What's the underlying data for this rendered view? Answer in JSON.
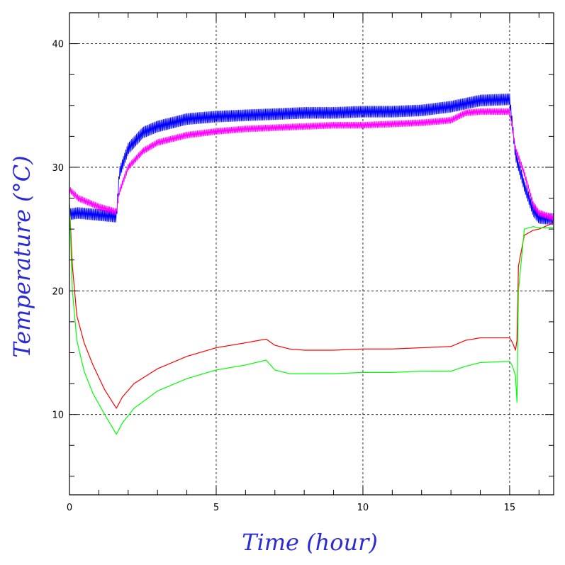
{
  "chart_data": {
    "type": "line",
    "title": "",
    "xlabel": "Time (hour)",
    "ylabel": "Temperature (°C)",
    "xlim": [
      0,
      16.5
    ],
    "ylim": [
      3.5,
      42.5
    ],
    "xticks": [
      0,
      5,
      10,
      15
    ],
    "yticks": [
      10,
      20,
      30,
      40
    ],
    "grid": true,
    "legend": "none",
    "colors": {
      "axis_title": "#2b2bd6",
      "axis": "#000000"
    },
    "series": [
      {
        "color": "#0000ff",
        "oscillation_amplitude": 0.9,
        "x": [
          0,
          0.3,
          1.6,
          1.7,
          2.0,
          2.5,
          3.0,
          4.0,
          5.0,
          6.0,
          7.0,
          8.0,
          9.0,
          10.0,
          11.0,
          12.0,
          13.0,
          14.0,
          15.0,
          15.2,
          15.5,
          15.8,
          16.0,
          16.5
        ],
        "y": [
          26.2,
          26.3,
          26.0,
          29.5,
          31.5,
          32.8,
          33.3,
          33.9,
          34.1,
          34.2,
          34.3,
          34.4,
          34.4,
          34.5,
          34.5,
          34.6,
          34.9,
          35.4,
          35.5,
          31.0,
          28.5,
          26.5,
          25.9,
          25.8
        ]
      },
      {
        "color": "#ff00ff",
        "oscillation_amplitude": 0.5,
        "x": [
          0,
          0.3,
          1.0,
          1.6,
          1.7,
          2.0,
          2.5,
          3.0,
          4.0,
          5.0,
          6.0,
          7.0,
          8.0,
          9.0,
          10.0,
          11.0,
          12.0,
          13.0,
          13.5,
          14.0,
          15.0,
          15.2,
          15.5,
          15.8,
          16.0,
          16.5
        ],
        "y": [
          28.2,
          27.5,
          26.8,
          26.4,
          28.0,
          30.0,
          31.3,
          32.0,
          32.6,
          32.9,
          33.1,
          33.2,
          33.3,
          33.4,
          33.4,
          33.5,
          33.6,
          33.8,
          34.4,
          34.5,
          34.5,
          31.5,
          29.5,
          27.0,
          26.3,
          25.9
        ]
      },
      {
        "color": "#ff0000",
        "oscillation_amplitude": 0.05,
        "x": [
          0,
          0.1,
          0.25,
          0.5,
          0.8,
          1.2,
          1.6,
          1.8,
          2.2,
          3.0,
          4.0,
          5.0,
          6.0,
          6.7,
          7.0,
          7.5,
          8.0,
          9.0,
          10.0,
          11.0,
          12.0,
          13.0,
          13.5,
          14.0,
          15.0,
          15.1,
          15.2,
          15.25,
          15.3,
          15.5,
          15.8,
          16.0,
          16.5
        ],
        "y": [
          27.0,
          22.0,
          18.0,
          15.8,
          14.0,
          12.0,
          10.5,
          11.4,
          12.5,
          13.7,
          14.7,
          15.4,
          15.8,
          16.1,
          15.6,
          15.3,
          15.2,
          15.2,
          15.3,
          15.3,
          15.4,
          15.5,
          16.0,
          16.2,
          16.2,
          15.8,
          15.2,
          16.0,
          22.0,
          24.5,
          24.9,
          25.0,
          25.5
        ]
      },
      {
        "color": "#00ff00",
        "oscillation_amplitude": 0.05,
        "x": [
          0,
          0.1,
          0.25,
          0.5,
          0.8,
          1.2,
          1.6,
          1.8,
          2.2,
          3.0,
          4.0,
          5.0,
          6.0,
          6.7,
          7.0,
          7.5,
          8.0,
          9.0,
          10.0,
          11.0,
          12.0,
          13.0,
          13.5,
          14.0,
          15.0,
          15.1,
          15.2,
          15.25,
          15.3,
          15.5,
          15.8,
          16.0,
          16.5
        ],
        "y": [
          27.0,
          20.0,
          16.0,
          13.5,
          11.7,
          10.0,
          8.4,
          9.3,
          10.5,
          11.9,
          12.9,
          13.6,
          14.0,
          14.4,
          13.6,
          13.3,
          13.3,
          13.3,
          13.4,
          13.4,
          13.5,
          13.5,
          13.9,
          14.2,
          14.3,
          13.9,
          13.1,
          11.0,
          20.0,
          25.0,
          25.2,
          25.1,
          25.1
        ]
      }
    ]
  }
}
